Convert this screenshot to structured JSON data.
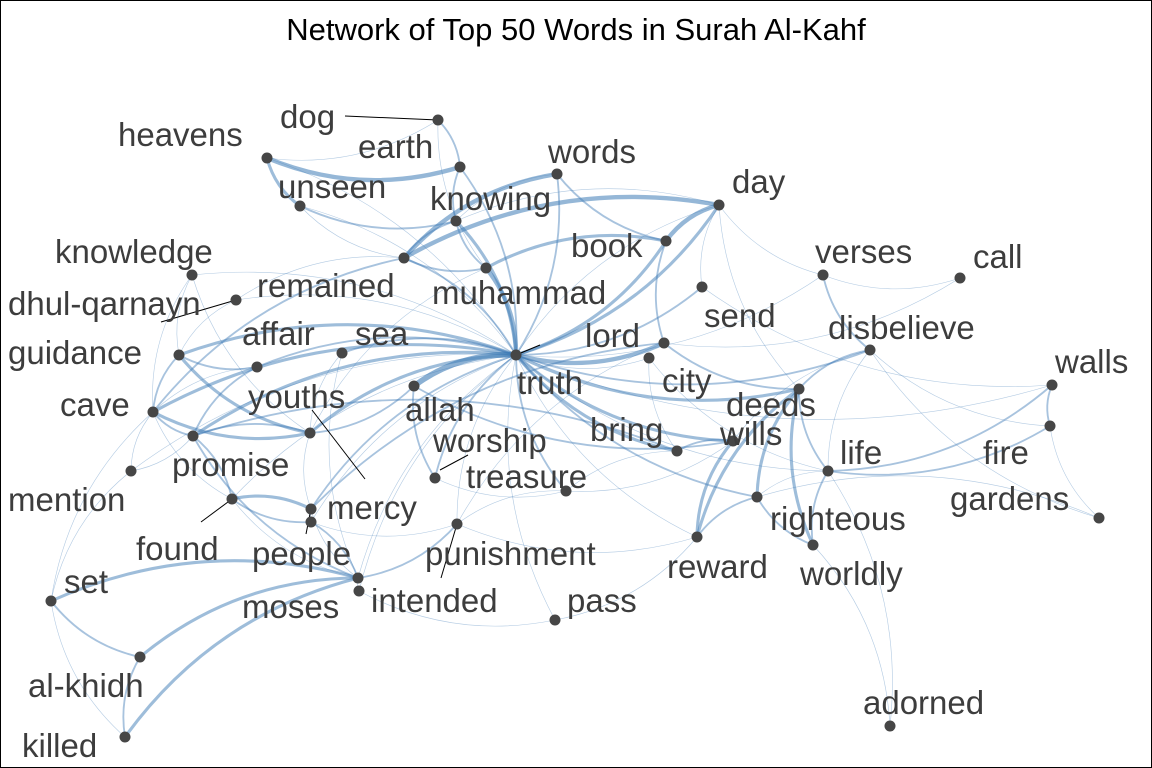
{
  "title": "Network of Top 50 Words in Surah Al-Kahf",
  "colors": {
    "edge": "#3e7bb6",
    "node": "#464646",
    "label": "#3d3d3d"
  },
  "nodes": [
    {
      "id": "truth",
      "label": "truth"
    },
    {
      "id": "dog",
      "label": "dog"
    },
    {
      "id": "heavens",
      "label": "heavens"
    },
    {
      "id": "earth",
      "label": "earth"
    },
    {
      "id": "words",
      "label": "words"
    },
    {
      "id": "unseen",
      "label": "unseen"
    },
    {
      "id": "knowing",
      "label": "knowing"
    },
    {
      "id": "day",
      "label": "day"
    },
    {
      "id": "book",
      "label": "book"
    },
    {
      "id": "knowledge",
      "label": "knowledge"
    },
    {
      "id": "verses",
      "label": "verses"
    },
    {
      "id": "call",
      "label": "call"
    },
    {
      "id": "remained",
      "label": "remained"
    },
    {
      "id": "muhammad",
      "label": "muhammad"
    },
    {
      "id": "dhul-qarnayn",
      "label": "dhul-qarnayn"
    },
    {
      "id": "send",
      "label": "send"
    },
    {
      "id": "affair",
      "label": "affair"
    },
    {
      "id": "sea",
      "label": "sea"
    },
    {
      "id": "lord",
      "label": "lord"
    },
    {
      "id": "disbelieve",
      "label": "disbelieve"
    },
    {
      "id": "guidance",
      "label": "guidance"
    },
    {
      "id": "walls",
      "label": "walls"
    },
    {
      "id": "city",
      "label": "city"
    },
    {
      "id": "cave",
      "label": "cave"
    },
    {
      "id": "youths",
      "label": "youths"
    },
    {
      "id": "allah",
      "label": "allah"
    },
    {
      "id": "deeds",
      "label": "deeds"
    },
    {
      "id": "worship",
      "label": "worship"
    },
    {
      "id": "bring",
      "label": "bring"
    },
    {
      "id": "wills",
      "label": "wills"
    },
    {
      "id": "life",
      "label": "life"
    },
    {
      "id": "fire",
      "label": "fire"
    },
    {
      "id": "promise",
      "label": "promise"
    },
    {
      "id": "treasure",
      "label": "treasure"
    },
    {
      "id": "mention",
      "label": "mention"
    },
    {
      "id": "gardens",
      "label": "gardens"
    },
    {
      "id": "mercy",
      "label": "mercy"
    },
    {
      "id": "righteous",
      "label": "righteous"
    },
    {
      "id": "found",
      "label": "found"
    },
    {
      "id": "punishment",
      "label": "punishment"
    },
    {
      "id": "people",
      "label": "people"
    },
    {
      "id": "reward",
      "label": "reward"
    },
    {
      "id": "worldly",
      "label": "worldly"
    },
    {
      "id": "set",
      "label": "set"
    },
    {
      "id": "moses",
      "label": "moses"
    },
    {
      "id": "intended",
      "label": "intended"
    },
    {
      "id": "pass",
      "label": "pass"
    },
    {
      "id": "al-khidh",
      "label": "al-khidh"
    },
    {
      "id": "adorned",
      "label": "adorned"
    },
    {
      "id": "killed",
      "label": "killed"
    }
  ],
  "edges": [
    [
      "truth",
      "allah",
      5
    ],
    [
      "truth",
      "lord",
      4
    ],
    [
      "truth",
      "muhammad",
      4
    ],
    [
      "truth",
      "book",
      3
    ],
    [
      "truth",
      "day",
      3
    ],
    [
      "truth",
      "knowing",
      3
    ],
    [
      "truth",
      "earth",
      2
    ],
    [
      "truth",
      "words",
      2
    ],
    [
      "truth",
      "youths",
      3
    ],
    [
      "truth",
      "cave",
      3
    ],
    [
      "truth",
      "guidance",
      3
    ],
    [
      "truth",
      "affair",
      2
    ],
    [
      "truth",
      "sea",
      2
    ],
    [
      "truth",
      "promise",
      3
    ],
    [
      "truth",
      "bring",
      3
    ],
    [
      "truth",
      "deeds",
      3
    ],
    [
      "truth",
      "wills",
      3
    ],
    [
      "truth",
      "disbelieve",
      2
    ],
    [
      "truth",
      "send",
      2
    ],
    [
      "truth",
      "righteous",
      2
    ],
    [
      "truth",
      "worship",
      2
    ],
    [
      "truth",
      "treasure",
      2
    ],
    [
      "truth",
      "remained",
      2
    ],
    [
      "truth",
      "mercy",
      2
    ],
    [
      "truth",
      "city",
      1
    ],
    [
      "truth",
      "punishment",
      1
    ],
    [
      "truth",
      "pass",
      1
    ],
    [
      "truth",
      "life",
      1
    ],
    [
      "truth",
      "verses",
      1
    ],
    [
      "truth",
      "walls",
      1
    ],
    [
      "truth",
      "reward",
      1
    ],
    [
      "truth",
      "people",
      1
    ],
    [
      "truth",
      "dhul-qarnayn",
      1
    ],
    [
      "truth",
      "heavens",
      1
    ],
    [
      "truth",
      "unseen",
      1
    ],
    [
      "truth",
      "knowledge",
      1
    ],
    [
      "truth",
      "found",
      1
    ],
    [
      "truth",
      "mention",
      1
    ],
    [
      "truth",
      "moses",
      1
    ],
    [
      "truth",
      "intended",
      1
    ],
    [
      "heavens",
      "earth",
      4
    ],
    [
      "heavens",
      "unseen",
      3
    ],
    [
      "heavens",
      "dog",
      1
    ],
    [
      "earth",
      "dog",
      2
    ],
    [
      "earth",
      "knowing",
      2
    ],
    [
      "dog",
      "muhammad",
      1
    ],
    [
      "unseen",
      "knowing",
      2
    ],
    [
      "unseen",
      "remained",
      1
    ],
    [
      "words",
      "book",
      2
    ],
    [
      "words",
      "knowing",
      1
    ],
    [
      "words",
      "remained",
      4
    ],
    [
      "knowing",
      "remained",
      2
    ],
    [
      "knowing",
      "muhammad",
      2
    ],
    [
      "day",
      "book",
      4
    ],
    [
      "day",
      "remained",
      4
    ],
    [
      "day",
      "send",
      1
    ],
    [
      "day",
      "truth",
      1
    ],
    [
      "day",
      "deeds",
      1
    ],
    [
      "day",
      "verses",
      1
    ],
    [
      "day",
      "knowing",
      1
    ],
    [
      "book",
      "muhammad",
      3
    ],
    [
      "book",
      "lord",
      2
    ],
    [
      "remained",
      "cave",
      2
    ],
    [
      "remained",
      "dhul-qarnayn",
      1
    ],
    [
      "remained",
      "muhammad",
      2
    ],
    [
      "muhammad",
      "youths",
      1
    ],
    [
      "knowledge",
      "guidance",
      1
    ],
    [
      "knowledge",
      "cave",
      1
    ],
    [
      "knowledge",
      "youths",
      1
    ],
    [
      "dhul-qarnayn",
      "guidance",
      1
    ],
    [
      "guidance",
      "cave",
      2
    ],
    [
      "guidance",
      "youths",
      3
    ],
    [
      "guidance",
      "affair",
      2
    ],
    [
      "affair",
      "cave",
      1
    ],
    [
      "affair",
      "promise",
      2
    ],
    [
      "sea",
      "moses",
      1
    ],
    [
      "sea",
      "youths",
      1
    ],
    [
      "cave",
      "youths",
      3
    ],
    [
      "cave",
      "promise",
      2
    ],
    [
      "cave",
      "mention",
      1
    ],
    [
      "cave",
      "found",
      1
    ],
    [
      "cave",
      "set",
      1
    ],
    [
      "youths",
      "allah",
      2
    ],
    [
      "youths",
      "mercy",
      1
    ],
    [
      "youths",
      "promise",
      2
    ],
    [
      "allah",
      "worship",
      2
    ],
    [
      "allah",
      "wills",
      2
    ],
    [
      "lord",
      "deeds",
      2
    ],
    [
      "lord",
      "mercy",
      2
    ],
    [
      "lord",
      "punishment",
      1
    ],
    [
      "lord",
      "call",
      1
    ],
    [
      "send",
      "walls",
      1
    ],
    [
      "verses",
      "disbelieve",
      2
    ],
    [
      "verses",
      "call",
      1
    ],
    [
      "disbelieve",
      "fire",
      1
    ],
    [
      "disbelieve",
      "gardens",
      1
    ],
    [
      "disbelieve",
      "deeds",
      2
    ],
    [
      "disbelieve",
      "wills",
      1
    ],
    [
      "disbelieve",
      "life",
      1
    ],
    [
      "deeds",
      "righteous",
      3
    ],
    [
      "deeds",
      "reward",
      3
    ],
    [
      "deeds",
      "life",
      2
    ],
    [
      "deeds",
      "worldly",
      3
    ],
    [
      "wills",
      "bring",
      2
    ],
    [
      "wills",
      "reward",
      3
    ],
    [
      "life",
      "walls",
      2
    ],
    [
      "life",
      "fire",
      2
    ],
    [
      "life",
      "righteous",
      1
    ],
    [
      "life",
      "worldly",
      2
    ],
    [
      "walls",
      "fire",
      2
    ],
    [
      "fire",
      "gardens",
      1
    ],
    [
      "righteous",
      "reward",
      2
    ],
    [
      "righteous",
      "worldly",
      2
    ],
    [
      "bring",
      "promise",
      2
    ],
    [
      "bring",
      "treasure",
      1
    ],
    [
      "city",
      "life",
      1
    ],
    [
      "treasure",
      "punishment",
      1
    ],
    [
      "treasure",
      "wills",
      1
    ],
    [
      "mercy",
      "found",
      3
    ],
    [
      "mercy",
      "people",
      2
    ],
    [
      "mercy",
      "moses",
      1
    ],
    [
      "found",
      "people",
      2
    ],
    [
      "found",
      "promise",
      2
    ],
    [
      "found",
      "moses",
      1
    ],
    [
      "promise",
      "moses",
      2
    ],
    [
      "moses",
      "set",
      3
    ],
    [
      "moses",
      "al-khidh",
      3
    ],
    [
      "moses",
      "killed",
      3
    ],
    [
      "moses",
      "people",
      2
    ],
    [
      "moses",
      "intended",
      1
    ],
    [
      "moses",
      "punishment",
      2
    ],
    [
      "set",
      "al-khidh",
      2
    ],
    [
      "al-khidh",
      "killed",
      2
    ],
    [
      "set",
      "killed",
      1
    ],
    [
      "intended",
      "pass",
      1
    ],
    [
      "pass",
      "reward",
      1
    ],
    [
      "adorned",
      "life",
      1
    ],
    [
      "adorned",
      "worldly",
      1
    ],
    [
      "punishment",
      "reward",
      1
    ],
    [
      "mention",
      "set",
      1
    ],
    [
      "people",
      "punishment",
      1
    ],
    [
      "worship",
      "treasure",
      1
    ],
    [
      "city",
      "bring",
      1
    ],
    [
      "mention",
      "promise",
      1
    ],
    [
      "gardens",
      "righteous",
      1
    ]
  ]
}
